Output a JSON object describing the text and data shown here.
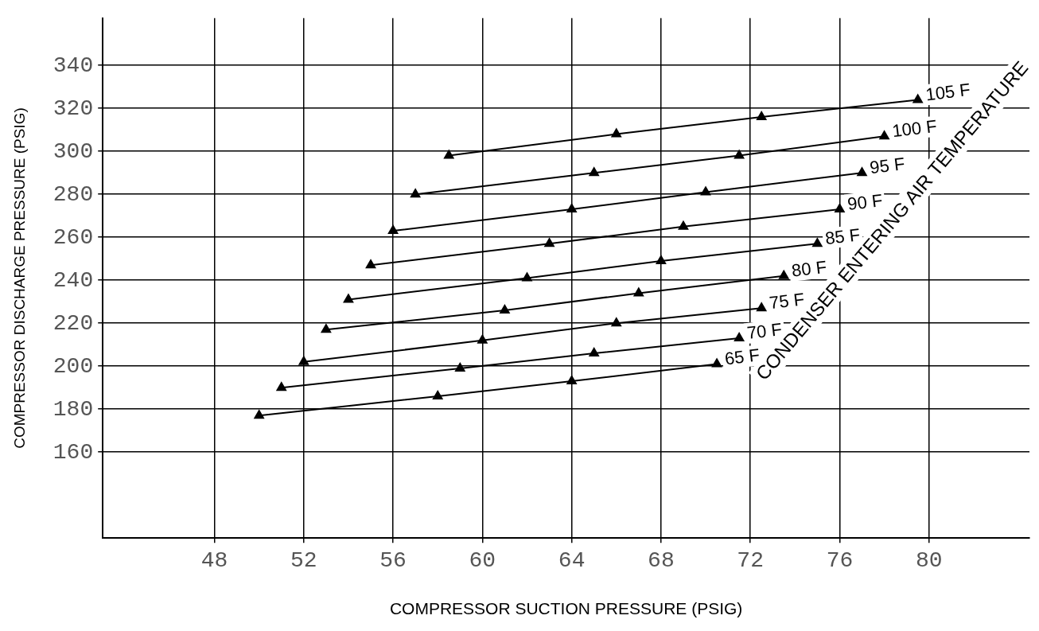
{
  "chart_data": {
    "type": "line",
    "xlabel": "COMPRESSOR SUCTION PRESSURE (PSIG)",
    "ylabel": "COMPRESSOR DISCHARGE PRESSURE (PSIG)",
    "xlim": [
      43,
      84.5
    ],
    "xticks": [
      48,
      52,
      56,
      60,
      64,
      68,
      72,
      76,
      80
    ],
    "ylim": [
      120,
      362
    ],
    "yticks": [
      160,
      180,
      200,
      220,
      240,
      260,
      280,
      300,
      320,
      340
    ],
    "grid": true,
    "marker": "triangle",
    "line_style": "solid",
    "annotations": [
      "CONDENSER ENTERING AIR TEMPERATURE"
    ],
    "series": [
      {
        "name": "65 F",
        "color": "#000000",
        "x": [
          50,
          58,
          64,
          70.5
        ],
        "values": [
          177,
          186,
          193,
          201
        ]
      },
      {
        "name": "70 F",
        "color": "#000000",
        "x": [
          51,
          59,
          65,
          71.5
        ],
        "values": [
          190,
          199,
          206,
          213
        ]
      },
      {
        "name": "75 F",
        "color": "#000000",
        "x": [
          52,
          60,
          66,
          72.5
        ],
        "values": [
          202,
          212,
          220,
          227
        ]
      },
      {
        "name": "80 F",
        "color": "#000000",
        "x": [
          53,
          61,
          67,
          73.5
        ],
        "values": [
          217,
          226,
          234,
          242
        ]
      },
      {
        "name": "85 F",
        "color": "#000000",
        "x": [
          54,
          62,
          68,
          75
        ],
        "values": [
          231,
          241,
          249,
          257
        ]
      },
      {
        "name": "90 F",
        "color": "#000000",
        "x": [
          55,
          63,
          69,
          76
        ],
        "values": [
          247,
          257,
          265,
          273
        ]
      },
      {
        "name": "95 F",
        "color": "#000000",
        "x": [
          56,
          64,
          70,
          77
        ],
        "values": [
          263,
          273,
          281,
          290
        ]
      },
      {
        "name": "100 F",
        "color": "#000000",
        "x": [
          57,
          65,
          71.5,
          78
        ],
        "values": [
          280,
          290,
          298,
          307
        ]
      },
      {
        "name": "105 F",
        "color": "#000000",
        "x": [
          58.5,
          66,
          72.5,
          79.5
        ],
        "values": [
          298,
          308,
          316,
          324
        ]
      }
    ]
  }
}
